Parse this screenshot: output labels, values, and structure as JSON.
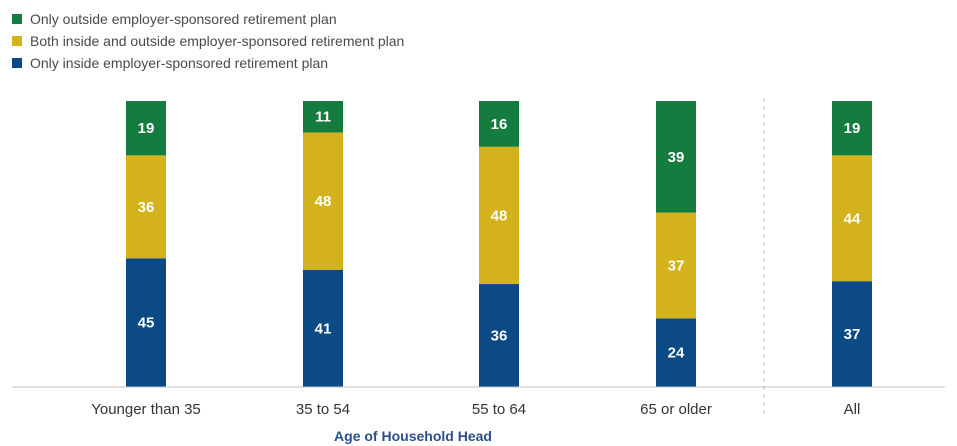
{
  "colors": {
    "outside": "#137c3e",
    "both": "#d4b21c",
    "inside": "#0c4a86",
    "axis": "#c0c0c0",
    "divider": "#bdbdbd"
  },
  "legend": [
    {
      "key": "outside",
      "label": "Only outside employer-sponsored retirement plan",
      "color": "#137c3e"
    },
    {
      "key": "both",
      "label": "Both inside and outside employer-sponsored retirement plan",
      "color": "#d4b21c"
    },
    {
      "key": "inside",
      "label": "Only inside employer-sponsored retirement plan",
      "color": "#0c4a86"
    }
  ],
  "chart_data": {
    "type": "bar",
    "stacked": true,
    "xlabel": "Age of Household Head",
    "ylabel": "",
    "ylim": [
      0,
      100
    ],
    "grid": false,
    "legend_position": "top-left",
    "categories": [
      "Younger than 35",
      "35 to 54",
      "55 to 64",
      "65 or older",
      "All"
    ],
    "series": [
      {
        "name": "Only inside employer-sponsored retirement plan",
        "key": "inside",
        "values": [
          45,
          41,
          36,
          24,
          37
        ]
      },
      {
        "name": "Both inside and outside employer-sponsored retirement plan",
        "key": "both",
        "values": [
          36,
          48,
          48,
          37,
          44
        ]
      },
      {
        "name": "Only outside employer-sponsored retirement plan",
        "key": "outside",
        "values": [
          19,
          11,
          16,
          39,
          19
        ]
      }
    ]
  }
}
